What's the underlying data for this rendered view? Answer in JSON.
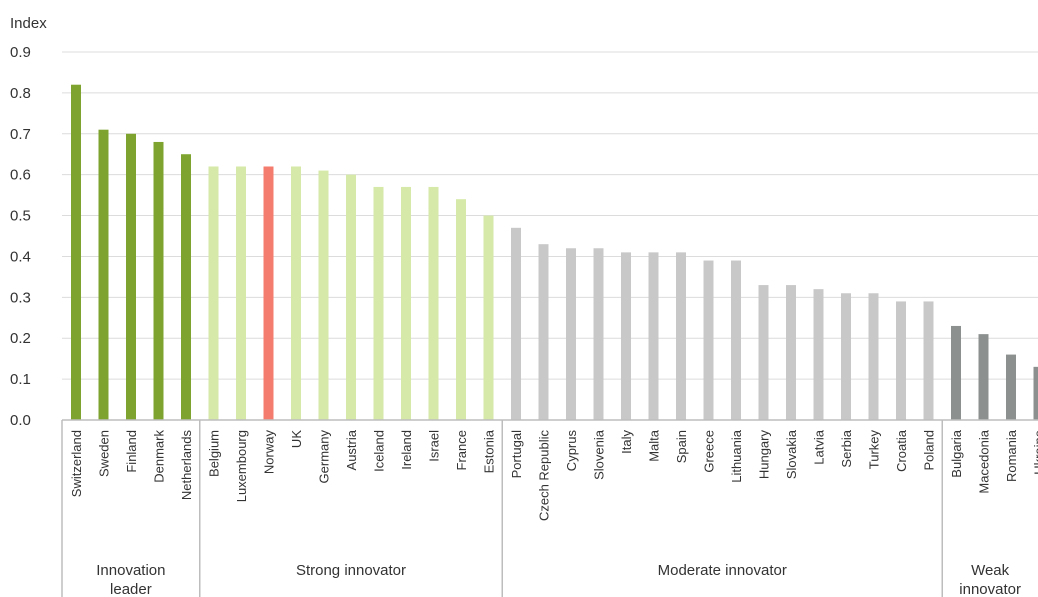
{
  "chart_data": {
    "type": "bar",
    "ylabel": "Index",
    "ylim": [
      0,
      0.9
    ],
    "yticks": [
      "0.0",
      "0.1",
      "0.2",
      "0.3",
      "0.4",
      "0.5",
      "0.6",
      "0.7",
      "0.8",
      "0.9"
    ],
    "grid": true,
    "categories": [
      "Switzerland",
      "Sweden",
      "Finland",
      "Denmark",
      "Netherlands",
      "Belgium",
      "Luxembourg",
      "Norway",
      "UK",
      "Germany",
      "Austria",
      "Iceland",
      "Ireland",
      "Israel",
      "France",
      "Estonia",
      "Portugal",
      "Czech Republic",
      "Cyprus",
      "Slovenia",
      "Italy",
      "Malta",
      "Spain",
      "Greece",
      "Lithuania",
      "Hungary",
      "Slovakia",
      "Latvia",
      "Serbia",
      "Turkey",
      "Croatia",
      "Poland",
      "Bulgaria",
      "Macedonia",
      "Romania",
      "Ukraine"
    ],
    "values": [
      0.82,
      0.71,
      0.7,
      0.68,
      0.65,
      0.62,
      0.62,
      0.62,
      0.62,
      0.61,
      0.6,
      0.57,
      0.57,
      0.57,
      0.54,
      0.5,
      0.47,
      0.43,
      0.42,
      0.42,
      0.41,
      0.41,
      0.41,
      0.39,
      0.39,
      0.33,
      0.33,
      0.32,
      0.31,
      0.31,
      0.29,
      0.29,
      0.23,
      0.21,
      0.16,
      0.13
    ],
    "groups": [
      {
        "label": "Innovation leader",
        "start": 0,
        "end": 4,
        "color": "#7ea32e"
      },
      {
        "label": "Strong innovator",
        "start": 5,
        "end": 15,
        "color": "#d6e9a8"
      },
      {
        "label": "Moderate innovator",
        "start": 16,
        "end": 31,
        "color": "#c8c8c8"
      },
      {
        "label": "Weak innovator",
        "start": 32,
        "end": 35,
        "color": "#8c918f"
      }
    ],
    "highlight": {
      "category": "Norway",
      "color": "#f47c6e"
    }
  }
}
